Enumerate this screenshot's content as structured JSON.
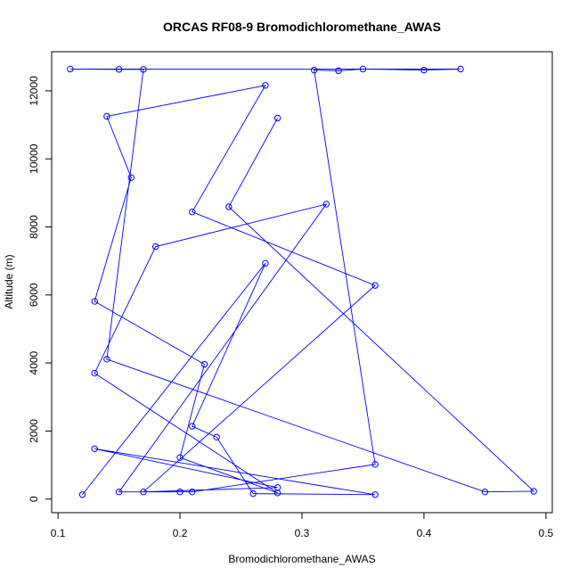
{
  "chart_data": {
    "type": "line",
    "title": "ORCAS RF08-9 Bromodichloromethane_AWAS",
    "x_label": "Bromodichloromethane_AWAS",
    "y_label": "Altitude (m)",
    "series": [
      {
        "color": "#0000ff",
        "x": [
          0.12,
          0.27,
          0.21,
          0.23,
          0.26,
          0.36,
          0.13,
          0.28,
          0.17,
          0.36,
          0.21,
          0.27,
          0.14,
          0.16,
          0.13,
          0.22,
          0.2,
          0.28,
          0.13,
          0.18,
          0.32,
          0.15,
          0.2,
          0.21,
          0.36,
          0.31,
          0.33,
          0.35,
          0.4,
          0.43,
          0.11,
          0.15,
          0.17,
          0.14,
          0.45,
          0.49,
          0.24,
          0.28
        ],
        "values": [
          130,
          6930,
          2140,
          1820,
          160,
          130,
          1480,
          340,
          210,
          6280,
          8440,
          12160,
          11250,
          9450,
          5810,
          3960,
          1220,
          180,
          3700,
          7420,
          8670,
          210,
          210,
          210,
          1020,
          12610,
          12590,
          12640,
          12610,
          12640,
          12640,
          12630,
          12630,
          4110,
          210,
          230,
          8590,
          11200
        ]
      }
    ],
    "xlim": [
      0.0948,
      0.5052
    ],
    "ylim": [
      -400,
      13150
    ],
    "xticks": [
      0.1,
      0.2,
      0.3,
      0.4,
      0.5
    ],
    "yticks": [
      0,
      2000,
      4000,
      6000,
      8000,
      10000,
      12000
    ]
  }
}
